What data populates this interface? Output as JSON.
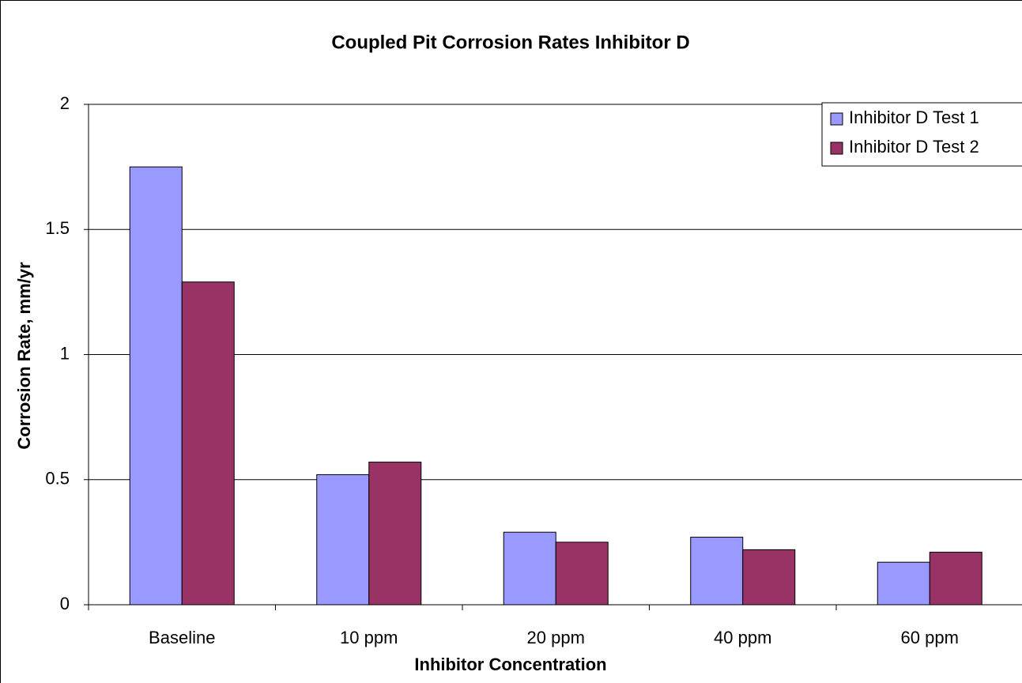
{
  "chart_data": {
    "type": "bar",
    "title": "Coupled Pit Corrosion Rates Inhibitor D",
    "x_label": "Inhibitor Concentration",
    "y_label": "Corrosion Rate, mm/yr",
    "categories": [
      "Baseline",
      "10 ppm",
      "20 ppm",
      "40 ppm",
      "60 ppm"
    ],
    "series": [
      {
        "name": "Inhibitor D Test 1",
        "color": "#9999ff",
        "values": [
          1.75,
          0.52,
          0.29,
          0.27,
          0.17
        ]
      },
      {
        "name": "Inhibitor D Test 2",
        "color": "#993366",
        "values": [
          1.29,
          0.57,
          0.25,
          0.22,
          0.21
        ]
      }
    ],
    "ylim": [
      0,
      2
    ],
    "yticks": [
      0,
      0.5,
      1,
      1.5,
      2
    ],
    "grid": true,
    "legend": "top-right"
  }
}
